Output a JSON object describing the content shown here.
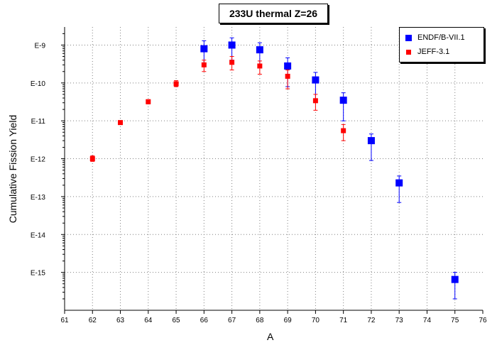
{
  "chart_data": {
    "type": "scatter",
    "title": "233U thermal Z=26",
    "xlabel": "A",
    "ylabel": "Cumulative Fission Yield",
    "xlim": [
      61,
      76
    ],
    "ylim": [
      1e-16,
      3e-09
    ],
    "yscale": "log",
    "x_ticks": [
      61,
      62,
      63,
      64,
      65,
      66,
      67,
      68,
      69,
      70,
      71,
      72,
      73,
      74,
      75,
      76
    ],
    "y_ticks": [
      {
        "value": 1e-09,
        "label": "E-9"
      },
      {
        "value": 1e-10,
        "label": "E-10"
      },
      {
        "value": 1e-11,
        "label": "E-11"
      },
      {
        "value": 1e-12,
        "label": "E-12"
      },
      {
        "value": 1e-13,
        "label": "E-13"
      },
      {
        "value": 1e-14,
        "label": "E-14"
      },
      {
        "value": 1e-15,
        "label": "E-15"
      }
    ],
    "grid": true,
    "legend_position": "top-right",
    "series": [
      {
        "name": "ENDF/B-VII.1",
        "color": "#0000ff",
        "marker": "square",
        "points": [
          {
            "x": 66,
            "y": 8e-10,
            "lo": 3e-10,
            "hi": 1.3e-09
          },
          {
            "x": 67,
            "y": 1e-09,
            "lo": 4e-10,
            "hi": 1.55e-09
          },
          {
            "x": 68,
            "y": 7.5e-10,
            "lo": 3e-10,
            "hi": 1.15e-09
          },
          {
            "x": 69,
            "y": 2.8e-10,
            "lo": 8e-11,
            "hi": 4.6e-10
          },
          {
            "x": 70,
            "y": 1.2e-10,
            "lo": 3.5e-11,
            "hi": 1.9e-10
          },
          {
            "x": 71,
            "y": 3.5e-11,
            "lo": 1e-11,
            "hi": 5.5e-11
          },
          {
            "x": 72,
            "y": 3e-12,
            "lo": 9e-13,
            "hi": 4.5e-12
          },
          {
            "x": 73,
            "y": 2.3e-13,
            "lo": 7e-14,
            "hi": 3.5e-13
          },
          {
            "x": 75,
            "y": 6.5e-16,
            "lo": 2e-16,
            "hi": 1e-15
          }
        ]
      },
      {
        "name": "JEFF-3.1",
        "color": "#ff0000",
        "marker": "square",
        "points": [
          {
            "x": 62,
            "y": 1e-12,
            "lo": 8.5e-13,
            "hi": 1.2e-12
          },
          {
            "x": 63,
            "y": 9e-12,
            "lo": 8e-12,
            "hi": 1e-11
          },
          {
            "x": 64,
            "y": 3.2e-11,
            "lo": 2.8e-11,
            "hi": 3.6e-11
          },
          {
            "x": 65,
            "y": 9.5e-11,
            "lo": 8e-11,
            "hi": 1.15e-10
          },
          {
            "x": 66,
            "y": 3e-10,
            "lo": 2e-10,
            "hi": 4e-10
          },
          {
            "x": 67,
            "y": 3.5e-10,
            "lo": 2.2e-10,
            "hi": 5e-10
          },
          {
            "x": 68,
            "y": 2.8e-10,
            "lo": 1.7e-10,
            "hi": 3.8e-10
          },
          {
            "x": 69,
            "y": 1.5e-10,
            "lo": 7e-11,
            "hi": 2.2e-10
          },
          {
            "x": 70,
            "y": 3.4e-11,
            "lo": 1.9e-11,
            "hi": 5e-11
          },
          {
            "x": 71,
            "y": 5.5e-12,
            "lo": 3e-12,
            "hi": 8e-12
          }
        ]
      }
    ]
  }
}
